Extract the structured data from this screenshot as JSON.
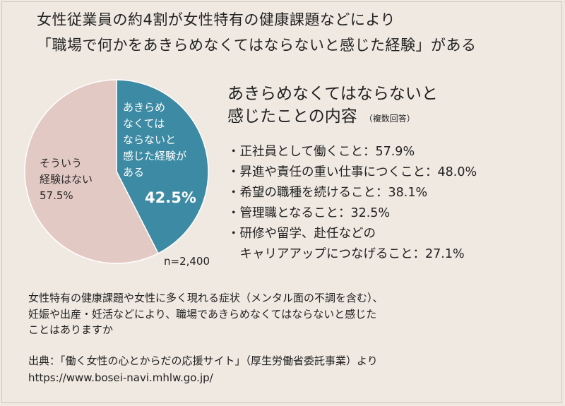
{
  "title_lines": [
    "女性従業員の約4割が女性特有の健康課題などにより",
    "「職場で何かをあきらめなくてはならないと感じた経験」がある"
  ],
  "chart_data": [
    {
      "type": "pie",
      "slices": [
        {
          "label": "あきらめなくてはならないと感じた経験がある",
          "value": 42.5,
          "display": "42.5%",
          "color": "#3c8aa3"
        },
        {
          "label": "そういう経験はない",
          "value": 57.5,
          "display": "57.5%",
          "color": "#e3c9c4"
        }
      ],
      "slice_label_lines": {
        "yes": [
          "あきらめ",
          "なくては",
          "ならないと",
          "感じた経験が",
          "ある"
        ],
        "no": [
          "そういう",
          "経験はない",
          "57.5%"
        ]
      },
      "yes_percent": "42.5%",
      "n_note": "n=2,400"
    },
    {
      "type": "table",
      "title_lines": [
        "あきらめなくてはならないと",
        "感じたことの内容"
      ],
      "title_note": "（複数回答）",
      "items": [
        {
          "label": "正社員として働くこと",
          "value": 57.9
        },
        {
          "label": "昇進や責任の重い仕事につくこと",
          "value": 48.0
        },
        {
          "label": "希望の職種を続けること",
          "value": 38.1
        },
        {
          "label": "管理職となること",
          "value": 32.5
        },
        {
          "label": "研修や留学、赴任などのキャリアアップにつなげること",
          "value": 27.1
        }
      ],
      "item_lines": [
        "・正社員として働くこと：57.9%",
        "・昇進や責任の重い仕事につくこと：48.0%",
        "・希望の職種を続けること：38.1%",
        "・管理職となること：32.5%",
        "・研修や留学、赴任などの",
        "　キャリアアップにつなげること：27.1%"
      ]
    }
  ],
  "question_lines": [
    "女性特有の健康課題や女性に多く現れる症状（メンタル面の不調を含む）、",
    "妊娠や出産・妊活などにより、職場であきらめなくてはならないと感じた",
    "ことはありますか"
  ],
  "source_lines": [
    "出典：「働く女性の心とからだの応援サイト」（厚生労働省委託事業）より",
    "https://www.bosei-navi.mhlw.go.jp/"
  ]
}
